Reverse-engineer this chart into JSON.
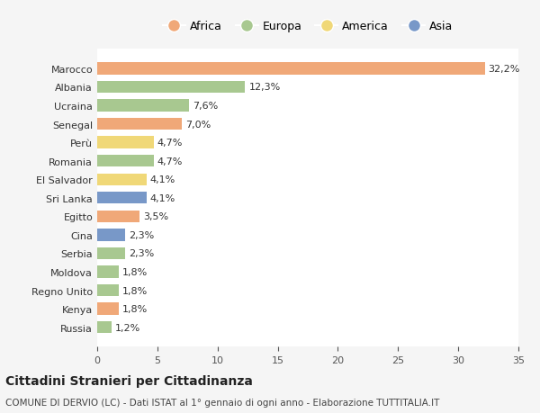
{
  "categories": [
    "Russia",
    "Kenya",
    "Regno Unito",
    "Moldova",
    "Serbia",
    "Cina",
    "Egitto",
    "Sri Lanka",
    "El Salvador",
    "Romania",
    "Perù",
    "Senegal",
    "Ucraina",
    "Albania",
    "Marocco"
  ],
  "values": [
    1.2,
    1.8,
    1.8,
    1.8,
    2.3,
    2.3,
    3.5,
    4.1,
    4.1,
    4.7,
    4.7,
    7.0,
    7.6,
    12.3,
    32.2
  ],
  "labels": [
    "1,2%",
    "1,8%",
    "1,8%",
    "1,8%",
    "2,3%",
    "2,3%",
    "3,5%",
    "4,1%",
    "4,1%",
    "4,7%",
    "4,7%",
    "7,0%",
    "7,6%",
    "12,3%",
    "32,2%"
  ],
  "continents": [
    "Europa",
    "Africa",
    "Europa",
    "Europa",
    "Europa",
    "Asia",
    "Africa",
    "Asia",
    "America",
    "Europa",
    "America",
    "Africa",
    "Europa",
    "Europa",
    "Africa"
  ],
  "continent_colors": {
    "Africa": "#F0A878",
    "Europa": "#A8C890",
    "America": "#F0D878",
    "Asia": "#7898C8"
  },
  "legend_order": [
    "Africa",
    "Europa",
    "America",
    "Asia"
  ],
  "title": "Cittadini Stranieri per Cittadinanza",
  "subtitle": "COMUNE DI DERVIO (LC) - Dati ISTAT al 1° gennaio di ogni anno - Elaborazione TUTTITALIA.IT",
  "xlim": [
    0,
    35
  ],
  "xticks": [
    0,
    5,
    10,
    15,
    20,
    25,
    30,
    35
  ],
  "background_color": "#f5f5f5",
  "bar_background": "#ffffff",
  "grid_color": "#ffffff"
}
